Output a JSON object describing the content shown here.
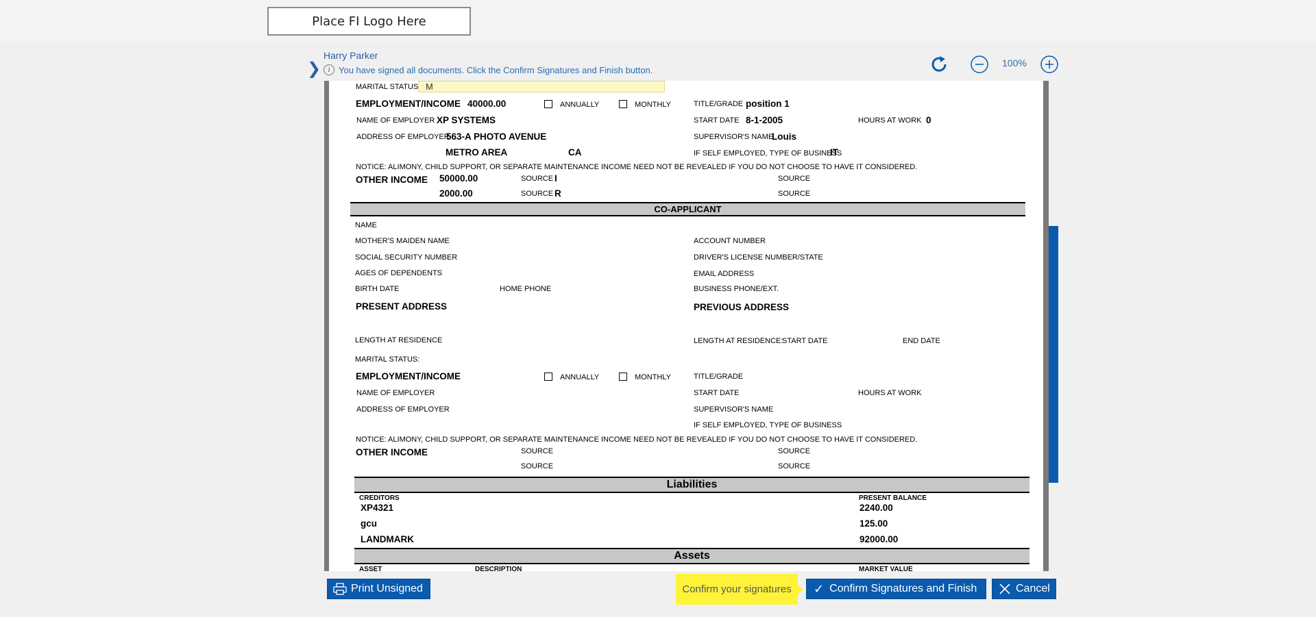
{
  "logo": {
    "placeholder": "Place FI Logo Here"
  },
  "header": {
    "signer_name": "Harry Parker",
    "info_message": "You have signed all documents. Click the Confirm Signatures and Finish button.",
    "zoom_level": "100%"
  },
  "document": {
    "applicant": {
      "marital_status_label": "MARITAL STATUS:",
      "marital_status_value": "M",
      "employment_label": "EMPLOYMENT/INCOME",
      "employment_value": "40000.00",
      "annually_label": "ANNUALLY",
      "monthly_label": "MONTHLY",
      "title_grade_label": "TITLE/GRADE",
      "title_grade_value": "position 1",
      "employer_name_label": "NAME OF EMPLOYER",
      "employer_name_value": "XP SYSTEMS",
      "start_date_label": "START DATE",
      "start_date_value": "8-1-2005",
      "hours_label": "HOURS AT WORK",
      "hours_value": "0",
      "employer_address_label": "ADDRESS OF EMPLOYER",
      "employer_address_value": "563-A PHOTO AVENUE",
      "supervisor_label": "SUPERVISOR'S NAME",
      "supervisor_value": "Louis",
      "city_value": "METRO AREA",
      "state_value": "CA",
      "self_employed_label": "IF SELF EMPLOYED, TYPE OF BUSINESS",
      "self_employed_value": "IT",
      "notice": "NOTICE: ALIMONY, CHILD SUPPORT, OR SEPARATE MAINTENANCE INCOME NEED NOT BE REVEALED IF YOU DO NOT CHOOSE TO HAVE IT CONSIDERED.",
      "other_income_label": "OTHER INCOME",
      "other_income_1": "50000.00",
      "other_income_2": "2000.00",
      "source_label": "SOURCE",
      "source_1_value": "I",
      "source_2_value": "R"
    },
    "co_applicant": {
      "section_title": "CO-APPLICANT",
      "name_label": "NAME",
      "maiden_label": "MOTHER'S MAIDEN NAME",
      "account_label": "ACCOUNT NUMBER",
      "ssn_label": "SOCIAL SECURITY NUMBER",
      "license_label": "DRIVER'S LICENSE NUMBER/STATE",
      "dependents_label": "AGES OF DEPENDENTS",
      "email_label": "EMAIL ADDRESS",
      "birth_label": "BIRTH DATE",
      "home_phone_label": "HOME PHONE",
      "business_phone_label": "BUSINESS PHONE/EXT.",
      "present_address_label": "PRESENT ADDRESS",
      "previous_address_label": "PREVIOUS ADDRESS",
      "length_residence_label": "LENGTH AT RESIDENCE",
      "length_residence_prev_label": "LENGTH AT RESIDENCE:",
      "prev_start_label": "START DATE",
      "prev_end_label": "END DATE",
      "marital_status_label": "MARITAL STATUS:",
      "employment_label": "EMPLOYMENT/INCOME",
      "annually_label": "ANNUALLY",
      "monthly_label": "MONTHLY",
      "title_grade_label": "TITLE/GRADE",
      "employer_name_label": "NAME OF EMPLOYER",
      "start_date_label": "START DATE",
      "hours_label": "HOURS AT WORK",
      "employer_address_label": "ADDRESS OF EMPLOYER",
      "supervisor_label": "SUPERVISOR'S NAME",
      "self_employed_label": "IF SELF EMPLOYED, TYPE OF BUSINESS",
      "notice": "NOTICE: ALIMONY, CHILD SUPPORT, OR SEPARATE MAINTENANCE INCOME NEED NOT BE REVEALED IF YOU DO NOT CHOOSE TO HAVE IT CONSIDERED.",
      "other_income_label": "OTHER INCOME",
      "source_label": "SOURCE"
    },
    "liabilities": {
      "section_title": "Liabilities",
      "creditors_label": "CREDITORS",
      "balance_label": "PRESENT BALANCE",
      "rows": [
        {
          "creditor": "XP4321",
          "balance": "2240.00"
        },
        {
          "creditor": "gcu",
          "balance": "125.00"
        },
        {
          "creditor": "LANDMARK",
          "balance": "92000.00"
        }
      ]
    },
    "assets": {
      "section_title": "Assets",
      "asset_label": "ASSET",
      "description_label": "DESCRIPTION",
      "market_value_label": "MARKET VALUE"
    }
  },
  "footer": {
    "print_label": "Print Unsigned",
    "confirm_hint": "Confirm your signatures",
    "confirm_label": "Confirm Signatures and Finish",
    "cancel_label": "Cancel"
  },
  "colors": {
    "primary": "#0a5aae",
    "hint": "#fff33a",
    "link": "#2b5fa3"
  }
}
